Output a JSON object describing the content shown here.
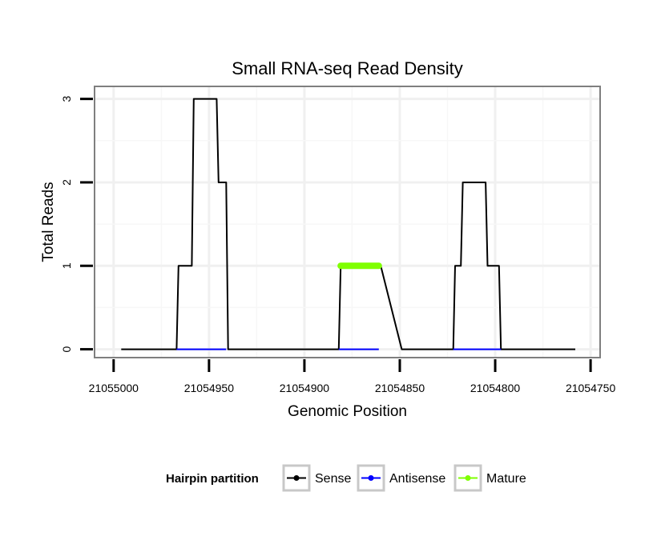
{
  "chart_data": {
    "type": "line",
    "title": "Small RNA-seq Read Density",
    "xlabel": "Genomic Position",
    "ylabel": "Total Reads",
    "xlim": [
      21055010,
      21054745
    ],
    "x_reversed": true,
    "ylim": [
      -0.1,
      3.15
    ],
    "x_ticks": [
      21055000,
      21054950,
      21054900,
      21054850,
      21054800,
      21054750
    ],
    "x_tick_labels": [
      "21055000",
      "21054950",
      "21054900",
      "21054850",
      "21054800",
      "21054750"
    ],
    "y_ticks": [
      0,
      1,
      2,
      3
    ],
    "y_tick_labels": [
      "0",
      "1",
      "2",
      "3"
    ],
    "grid": true,
    "series": [
      {
        "name": "Sense",
        "color": "#000000",
        "x": [
          21054996,
          21054967,
          21054966,
          21054959,
          21054958,
          21054946,
          21054945,
          21054941,
          21054940,
          21054936,
          21054908,
          21054882,
          21054881,
          21054861,
          21054860,
          21054849,
          21054832,
          21054822,
          21054821,
          21054818,
          21054817,
          21054805,
          21054804,
          21054798,
          21054797,
          21054790,
          21054758
        ],
        "y": [
          0,
          0,
          1,
          1,
          3,
          3,
          2,
          2,
          0,
          0,
          0,
          0,
          1,
          1,
          1,
          0,
          0,
          0,
          1,
          1,
          2,
          2,
          1,
          1,
          0,
          0,
          0
        ]
      },
      {
        "name": "Antisense",
        "color": "#0000ff",
        "segments": [
          [
            21054967,
            21054941
          ],
          [
            21054882,
            21054861
          ],
          [
            21054822,
            21054797
          ]
        ],
        "y": 0
      },
      {
        "name": "Mature",
        "color": "#7fff00",
        "segments": [
          [
            21054881,
            21054861
          ]
        ],
        "y": 1
      }
    ],
    "legend": {
      "title": "Hairpin partition",
      "placement": "bottom",
      "entries": [
        {
          "label": "Sense",
          "color": "#000000"
        },
        {
          "label": "Antisense",
          "color": "#0000ff"
        },
        {
          "label": "Mature",
          "color": "#7fff00"
        }
      ]
    }
  }
}
